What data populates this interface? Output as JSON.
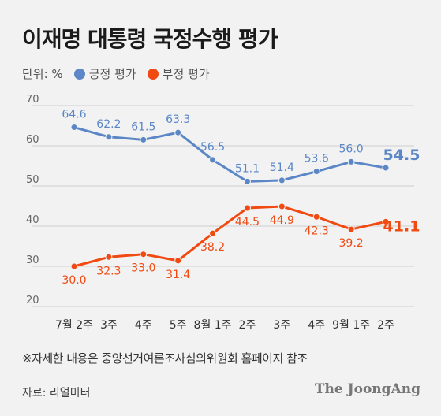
{
  "title": "이재명 대통령 국정수행 평가",
  "legend": {
    "unit": "단위: %",
    "positive_label": "긍정 평가",
    "negative_label": "부정 평가"
  },
  "colors": {
    "positive": "#5b87c7",
    "negative": "#f04a12",
    "grid": "#cfcfcf",
    "axis_text": "#666666"
  },
  "note": "※자세한 내용은 중앙선거여론조사심의위원회 홈페이지 참조",
  "source": "자료: 리얼미터",
  "brand": "The JoongAng",
  "chart_data": {
    "type": "line",
    "categories": [
      "7월 2주",
      "3주",
      "4주",
      "5주",
      "8월 1주",
      "2주",
      "3주",
      "4주",
      "9월 1주",
      "2주"
    ],
    "series": [
      {
        "name": "긍정 평가",
        "values": [
          64.6,
          62.2,
          61.5,
          63.3,
          56.5,
          51.1,
          51.4,
          53.6,
          56.0,
          54.5
        ],
        "labels": [
          "64.6",
          "62.2",
          "61.5",
          "63.3",
          "56.5",
          "51.1",
          "51.4",
          "53.6",
          "56.0",
          "54.5"
        ]
      },
      {
        "name": "부정 평가",
        "values": [
          30.0,
          32.3,
          33.0,
          31.4,
          38.2,
          44.5,
          44.9,
          42.3,
          39.2,
          41.1
        ],
        "labels": [
          "30.0",
          "32.3",
          "33.0",
          "31.4",
          "38.2",
          "44.5",
          "44.9",
          "42.3",
          "39.2",
          "41.1"
        ]
      }
    ],
    "yticks": [
      20,
      30,
      40,
      50,
      60,
      70
    ],
    "ylim": [
      20,
      70
    ],
    "grid": true,
    "legend_position": "top-left"
  }
}
